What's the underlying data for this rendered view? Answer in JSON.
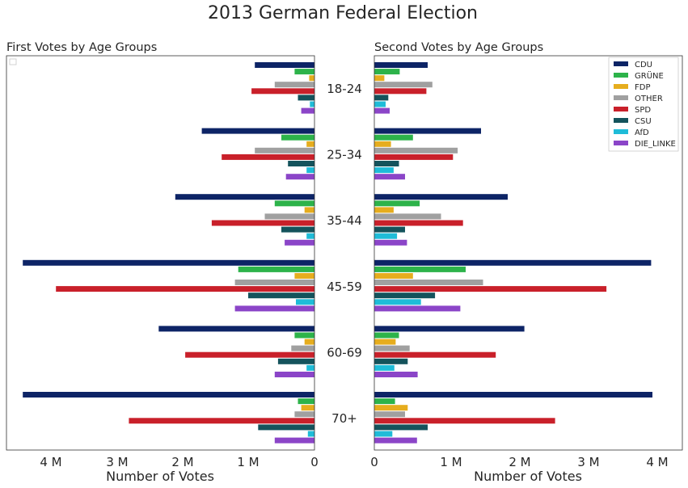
{
  "title": "2013 German Federal Election",
  "left_title": "First Votes by Age Groups",
  "right_title": "Second Votes by Age Groups",
  "xlabel": "Number of Votes",
  "left_ticks": [
    "4 M",
    "3 M",
    "2 M",
    "1 M",
    "0"
  ],
  "right_ticks": [
    "0",
    "1 M",
    "2 M",
    "3 M",
    "4 M"
  ],
  "colors": {
    "CDU": "#0d2466",
    "GRÜNE": "#2db34a",
    "FDP": "#e6ad1e",
    "OTHER": "#a0a0a0",
    "SPD": "#c9202a",
    "CSU": "#14535c",
    "AfD": "#1fbcd8",
    "DIE_LINKE": "#8b45c8"
  },
  "chart_data": [
    {
      "type": "bar",
      "orientation": "horizontal",
      "title": "First Votes by Age Groups",
      "xlabel": "Number of Votes",
      "xlim": [
        4.6,
        0
      ],
      "categories": [
        "18-24",
        "25-34",
        "35-44",
        "45-59",
        "60-69",
        "70+"
      ],
      "series": [
        {
          "name": "CDU",
          "values": [
            0.9,
            1.7,
            2.1,
            4.4,
            2.35,
            4.4
          ]
        },
        {
          "name": "GRÜNE",
          "values": [
            0.3,
            0.5,
            0.6,
            1.15,
            0.3,
            0.25
          ]
        },
        {
          "name": "FDP",
          "values": [
            0.08,
            0.12,
            0.15,
            0.3,
            0.15,
            0.2
          ]
        },
        {
          "name": "OTHER",
          "values": [
            0.6,
            0.9,
            0.75,
            1.2,
            0.35,
            0.3
          ]
        },
        {
          "name": "SPD",
          "values": [
            0.95,
            1.4,
            1.55,
            3.9,
            1.95,
            2.8
          ]
        },
        {
          "name": "CSU",
          "values": [
            0.25,
            0.4,
            0.5,
            1.0,
            0.55,
            0.85
          ]
        },
        {
          "name": "AfD",
          "values": [
            0.07,
            0.12,
            0.12,
            0.28,
            0.12,
            0.1
          ]
        },
        {
          "name": "DIE_LINKE",
          "values": [
            0.2,
            0.43,
            0.45,
            1.2,
            0.6,
            0.6
          ]
        }
      ]
    },
    {
      "type": "bar",
      "orientation": "horizontal",
      "title": "Second Votes by Age Groups",
      "xlabel": "Number of Votes",
      "xlim": [
        0,
        4.35
      ],
      "categories": [
        "18-24",
        "25-34",
        "35-44",
        "45-59",
        "60-69",
        "70+"
      ],
      "legend": "top-right",
      "series": [
        {
          "name": "CDU",
          "values": [
            0.8,
            1.6,
            2.0,
            4.15,
            2.25,
            4.17
          ]
        },
        {
          "name": "GRÜNE",
          "values": [
            0.38,
            0.58,
            0.68,
            1.37,
            0.37,
            0.31
          ]
        },
        {
          "name": "FDP",
          "values": [
            0.15,
            0.25,
            0.29,
            0.58,
            0.32,
            0.5
          ]
        },
        {
          "name": "OTHER",
          "values": [
            0.87,
            1.25,
            1.0,
            1.63,
            0.53,
            0.46
          ]
        },
        {
          "name": "SPD",
          "values": [
            0.78,
            1.18,
            1.33,
            3.48,
            1.82,
            2.71
          ]
        },
        {
          "name": "CSU",
          "values": [
            0.21,
            0.37,
            0.46,
            0.91,
            0.5,
            0.8
          ]
        },
        {
          "name": "AfD",
          "values": [
            0.17,
            0.29,
            0.34,
            0.7,
            0.3,
            0.27
          ]
        },
        {
          "name": "DIE_LINKE",
          "values": [
            0.23,
            0.46,
            0.49,
            1.29,
            0.65,
            0.64
          ]
        }
      ]
    }
  ]
}
